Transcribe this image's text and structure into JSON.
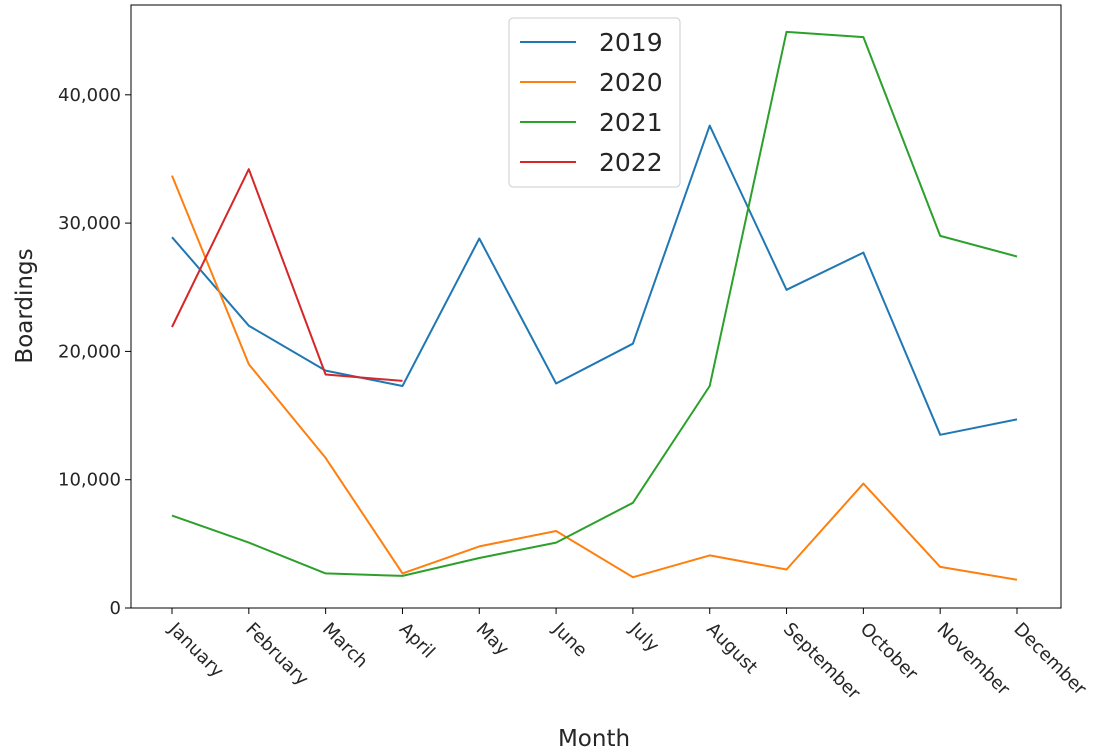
{
  "chart_data": {
    "type": "line",
    "title": "",
    "xlabel": "Month",
    "ylabel": "Boardings",
    "categories": [
      "January",
      "February",
      "March",
      "April",
      "May",
      "June",
      "July",
      "August",
      "September",
      "October",
      "November",
      "December"
    ],
    "ylim": [
      0,
      47000
    ],
    "yticks": [
      0,
      10000,
      20000,
      30000,
      40000
    ],
    "ytick_labels": [
      "0",
      "10,000",
      "20,000",
      "30,000",
      "40,000"
    ],
    "legend_position": "top-center",
    "grid": false,
    "series": [
      {
        "name": "2019",
        "color": "#1f77b4",
        "values": [
          28900,
          22000,
          18500,
          17300,
          28800,
          17500,
          20600,
          37600,
          24800,
          27700,
          13500,
          14700
        ]
      },
      {
        "name": "2020",
        "color": "#ff7f0e",
        "values": [
          33700,
          19000,
          11700,
          2700,
          4800,
          6000,
          2400,
          4100,
          3000,
          9700,
          3200,
          2200
        ]
      },
      {
        "name": "2021",
        "color": "#2ca02c",
        "values": [
          7200,
          5100,
          2700,
          2500,
          3900,
          5100,
          8200,
          17300,
          44900,
          44500,
          29000,
          27400
        ]
      },
      {
        "name": "2022",
        "color": "#d62728",
        "values": [
          21900,
          34200,
          18200,
          17700,
          null,
          null,
          null,
          null,
          null,
          null,
          null,
          null
        ]
      }
    ]
  }
}
